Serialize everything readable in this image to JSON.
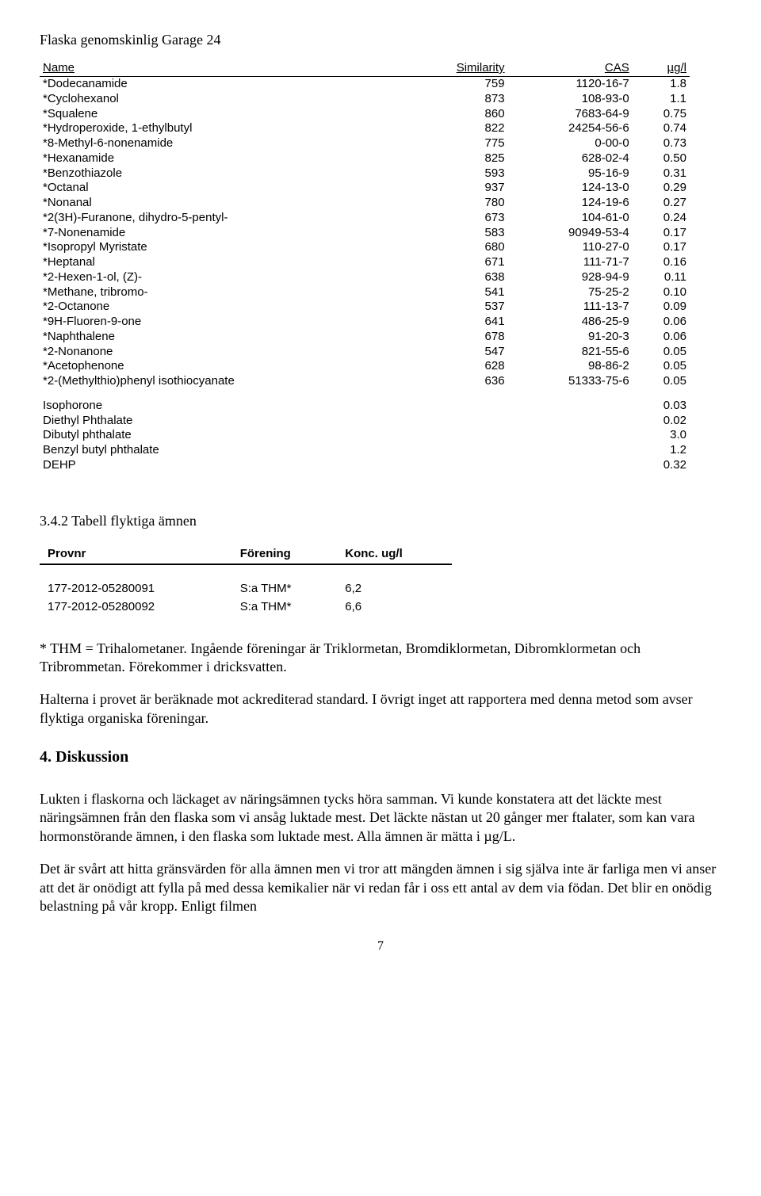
{
  "top_heading": "Flaska genomskinlig Garage 24",
  "table1": {
    "headers": [
      "Name",
      "Similarity",
      "CAS",
      "µg/l"
    ],
    "rows": [
      [
        "*Dodecanamide",
        "759",
        "1120-16-7",
        "1.8"
      ],
      [
        "*Cyclohexanol",
        "873",
        "108-93-0",
        "1.1"
      ],
      [
        "*Squalene",
        "860",
        "7683-64-9",
        "0.75"
      ],
      [
        "*Hydroperoxide, 1-ethylbutyl",
        "822",
        "24254-56-6",
        "0.74"
      ],
      [
        "*8-Methyl-6-nonenamide",
        "775",
        "0-00-0",
        "0.73"
      ],
      [
        "*Hexanamide",
        "825",
        "628-02-4",
        "0.50"
      ],
      [
        "*Benzothiazole",
        "593",
        "95-16-9",
        "0.31"
      ],
      [
        "*Octanal",
        "937",
        "124-13-0",
        "0.29"
      ],
      [
        "*Nonanal",
        "780",
        "124-19-6",
        "0.27"
      ],
      [
        "*2(3H)-Furanone, dihydro-5-pentyl-",
        "673",
        "104-61-0",
        "0.24"
      ],
      [
        "*7-Nonenamide",
        "583",
        "90949-53-4",
        "0.17"
      ],
      [
        "*Isopropyl Myristate",
        "680",
        "110-27-0",
        "0.17"
      ],
      [
        "*Heptanal",
        "671",
        "111-71-7",
        "0.16"
      ],
      [
        "*2-Hexen-1-ol, (Z)-",
        "638",
        "928-94-9",
        "0.11"
      ],
      [
        "*Methane, tribromo-",
        "541",
        "75-25-2",
        "0.10"
      ],
      [
        "*2-Octanone",
        "537",
        "111-13-7",
        "0.09"
      ],
      [
        "*9H-Fluoren-9-one",
        "641",
        "486-25-9",
        "0.06"
      ],
      [
        "*Naphthalene",
        "678",
        "91-20-3",
        "0.06"
      ],
      [
        "*2-Nonanone",
        "547",
        "821-55-6",
        "0.05"
      ],
      [
        "*Acetophenone",
        "628",
        "98-86-2",
        "0.05"
      ],
      [
        "*2-(Methylthio)phenyl isothiocyanate",
        "636",
        "51333-75-6",
        "0.05"
      ]
    ],
    "extra_rows": [
      [
        "Isophorone",
        "",
        "",
        "0.03"
      ],
      [
        "Diethyl Phthalate",
        "",
        "",
        "0.02"
      ],
      [
        "Dibutyl phthalate",
        "",
        "",
        "3.0"
      ],
      [
        "Benzyl butyl phthalate",
        "",
        "",
        "1.2"
      ],
      [
        "DEHP",
        "",
        "",
        "0.32"
      ]
    ]
  },
  "section_342": "3.4.2 Tabell flyktiga ämnen",
  "thm_table": {
    "headers": [
      "Provnr",
      "Förening",
      "Konc. ug/l"
    ],
    "rows": [
      [
        "177-2012-05280091",
        "S:a THM*",
        "6,2"
      ],
      [
        "177-2012-05280092",
        "S:a THM*",
        "6,6"
      ]
    ]
  },
  "thm_note": "* THM = Trihalometaner. Ingående föreningar är Triklormetan, Bromdiklormetan, Dibromklormetan och Tribrommetan. Förekommer i dricksvatten.",
  "halter_note": "Halterna i provet är beräknade mot ackrediterad standard. I övrigt inget att rapportera med denna metod som avser flyktiga organiska föreningar.",
  "diskussion_heading": "4. Diskussion",
  "diskussion_p1": "Lukten i flaskorna och läckaget av näringsämnen tycks höra samman. Vi kunde konstatera att det läckte mest näringsämnen från den flaska som vi ansåg luktade mest. Det läckte nästan ut 20 gånger mer ftalater, som kan vara hormonstörande ämnen, i den flaska som luktade mest. Alla ämnen är mätta i µg/L.",
  "diskussion_p2": "Det är svårt att hitta gränsvärden för alla ämnen men vi tror att mängden ämnen i sig själva inte är farliga men vi anser att det är onödigt att fylla på med dessa kemikalier när vi redan får i oss ett antal av dem via födan. Det blir en onödig belastning på vår kropp. Enligt filmen",
  "page_number": "7"
}
